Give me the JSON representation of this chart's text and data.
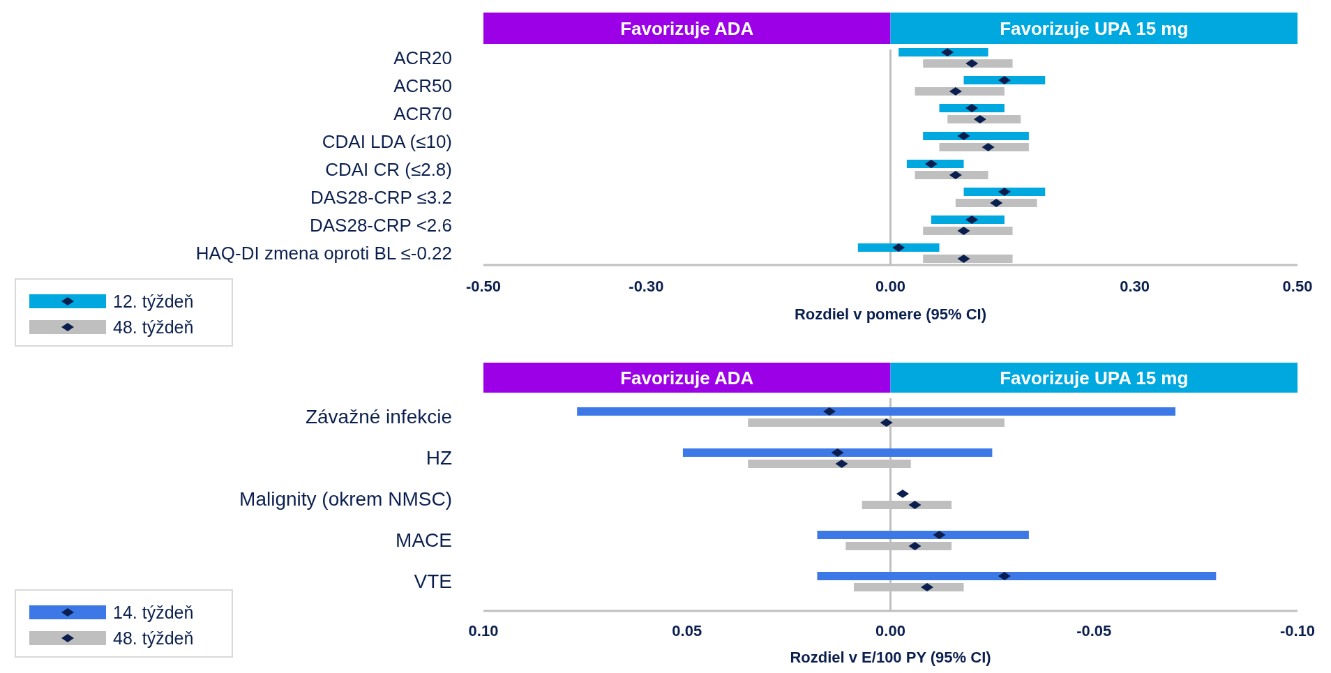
{
  "chart_data": [
    {
      "type": "bar",
      "orientation": "horizontal",
      "categories": [
        "ACR20",
        "ACR50",
        "ACR70",
        "CDAI LDA (≤10)",
        "CDAI CR (≤2.8)",
        "DAS28-CRP ≤3.2",
        "DAS28-CRP <2.6",
        "HAQ-DI zmena oproti BL ≤-0.22"
      ],
      "series": [
        {
          "name": "12. týždeň",
          "color": "#00a8e0",
          "base": [
            0.01,
            0.09,
            0.06,
            0.04,
            0.02,
            0.09,
            0.05,
            -0.04
          ],
          "values": [
            0.11,
            0.1,
            0.08,
            0.13,
            0.07,
            0.1,
            0.09,
            0.1
          ]
        },
        {
          "name": "48. týždeň",
          "color": "#bfbfbf",
          "base": [
            0.04,
            0.03,
            0.07,
            0.06,
            0.03,
            0.08,
            0.04,
            0.04
          ],
          "values": [
            0.11,
            0.11,
            0.09,
            0.11,
            0.09,
            0.1,
            0.11,
            0.11
          ]
        },
        {
          "type": "scatter",
          "color": "#0b1f4f",
          "values": [
            0.07,
            0.14,
            0.1,
            0.09,
            0.05,
            0.14,
            0.1,
            0.01
          ]
        },
        {
          "type": "scatter",
          "color": "#0b1f4f",
          "values": [
            0.1,
            0.08,
            0.11,
            0.12,
            0.08,
            0.13,
            0.09,
            0.09
          ]
        }
      ],
      "xlabel": "Rozdiel v pomere (95% CI)",
      "xlim": [
        -0.5,
        0.5
      ],
      "xticks": [
        {
          "value": -0.5,
          "label": "-0.50"
        },
        {
          "value": -0.3,
          "label": "-0.30"
        },
        {
          "value": 0,
          "label": "0.00"
        },
        {
          "value": 0.3,
          "label": "0.30"
        },
        {
          "value": 0.5,
          "label": "0.50"
        }
      ],
      "annotations": [
        "Favorizuje ADA",
        "Favorizuje UPA 15 mg"
      ],
      "ref_lines": [
        {
          "axis": "x",
          "value": 0,
          "color": "#bfbfbf"
        }
      ],
      "marker": "diamond",
      "legend": "bottom left",
      "grid": false
    },
    {
      "type": "bar",
      "orientation": "horizontal",
      "categories": [
        "Závažné infekcie",
        "HZ",
        "Malignity (okrem NMSC)",
        "MACE",
        "VTE"
      ],
      "series": [
        {
          "name": "14. týždeň",
          "color": "#3c78e6",
          "base": [
            -0.07,
            -0.025,
            null,
            -0.034,
            -0.08
          ],
          "values": [
            0.147,
            0.076,
            null,
            0.052,
            0.098
          ]
        },
        {
          "name": "48. týždeň",
          "color": "#bfbfbf",
          "base": [
            -0.028,
            -0.005,
            -0.015,
            -0.015,
            -0.018
          ],
          "values": [
            0.063,
            0.04,
            0.022,
            0.026,
            0.027
          ]
        },
        {
          "type": "scatter",
          "color": "#0b1f4f",
          "values": [
            0.015,
            0.013,
            -0.003,
            -0.012,
            -0.028
          ]
        },
        {
          "type": "scatter",
          "color": "#0b1f4f",
          "values": [
            0.001,
            0.012,
            -0.006,
            -0.006,
            -0.009
          ]
        }
      ],
      "xlabel": "Rozdiel v E/100 PY (95% CI)",
      "xlim": [
        0.1,
        -0.1
      ],
      "xticks": [
        {
          "value": 0.1,
          "label": "0.10"
        },
        {
          "value": 0.05,
          "label": "0.05"
        },
        {
          "value": 0,
          "label": "0.00"
        },
        {
          "value": -0.05,
          "label": "-0.05"
        },
        {
          "value": -0.1,
          "label": "-0.10"
        }
      ],
      "annotations": [
        "Favorizuje ADA",
        "Favorizuje UPA 15 mg"
      ],
      "ref_lines": [
        {
          "axis": "x",
          "value": 0,
          "color": "#bfbfbf"
        }
      ],
      "marker": "diamond",
      "legend": "bottom left",
      "grid": false
    }
  ]
}
